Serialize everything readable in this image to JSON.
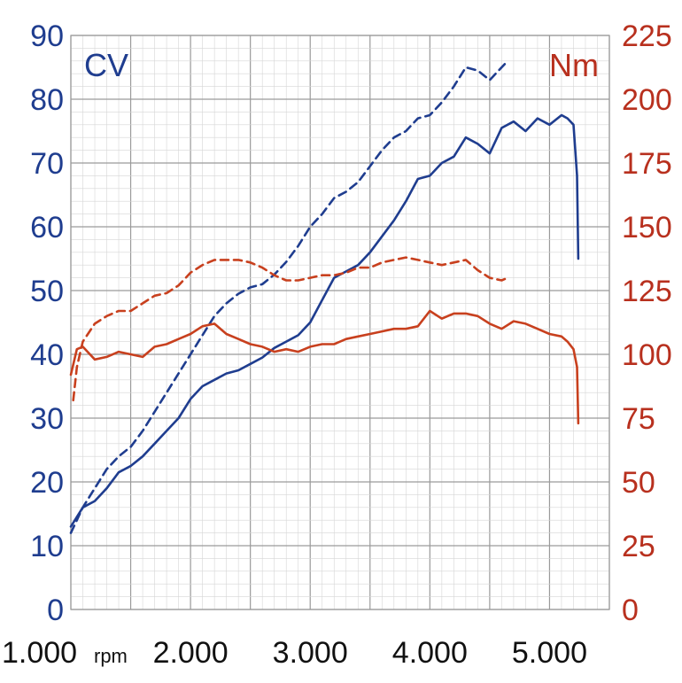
{
  "chart_data": {
    "type": "line",
    "x_ticks": [
      "1.000",
      "2.000",
      "3.000",
      "4.000",
      "5.000"
    ],
    "x_unit": "rpm",
    "xlim": [
      1000,
      5500
    ],
    "left_axis": {
      "label": "CV",
      "ticks": [
        "0",
        "10",
        "20",
        "30",
        "40",
        "50",
        "60",
        "70",
        "80",
        "90"
      ],
      "ylim": [
        0,
        90
      ],
      "color": "#1f3d8f"
    },
    "right_axis": {
      "label": "Nm",
      "ticks": [
        "0",
        "25",
        "50",
        "75",
        "100",
        "125",
        "150",
        "175",
        "200",
        "225"
      ],
      "ylim": [
        0,
        225
      ],
      "color": "#b8301e"
    },
    "grid": true,
    "series": [
      {
        "axis": "left",
        "style": "solid",
        "color": "#1f3d8f",
        "x": [
          1000,
          1100,
          1200,
          1300,
          1400,
          1500,
          1600,
          1700,
          1800,
          1900,
          2000,
          2100,
          2200,
          2300,
          2400,
          2500,
          2600,
          2700,
          2800,
          2900,
          3000,
          3100,
          3200,
          3300,
          3400,
          3500,
          3600,
          3700,
          3800,
          3900,
          4000,
          4100,
          4200,
          4300,
          4400,
          4500,
          4600,
          4700,
          4800,
          4900,
          5000,
          5100,
          5150,
          5200,
          5230,
          5240
        ],
        "y": [
          13,
          16,
          17,
          19,
          21.5,
          22.5,
          24,
          26,
          28,
          30,
          33,
          35,
          36,
          37,
          37.5,
          38.5,
          39.5,
          41,
          42,
          43,
          45,
          48.5,
          52,
          53,
          54,
          56,
          58.5,
          61,
          64,
          67.5,
          68,
          70,
          71,
          74,
          73,
          71.5,
          75.5,
          76.5,
          75,
          77,
          76,
          77.5,
          77,
          76,
          68,
          55
        ]
      },
      {
        "axis": "left",
        "style": "dashed",
        "color": "#1f3d8f",
        "x": [
          1000,
          1100,
          1200,
          1300,
          1400,
          1500,
          1600,
          1700,
          1800,
          1900,
          2000,
          2100,
          2200,
          2300,
          2400,
          2500,
          2600,
          2700,
          2800,
          2900,
          3000,
          3100,
          3200,
          3300,
          3400,
          3500,
          3600,
          3700,
          3800,
          3900,
          4000,
          4100,
          4200,
          4300,
          4400,
          4500,
          4600,
          4650
        ],
        "y": [
          12,
          16,
          19,
          22,
          24,
          25.5,
          28,
          31,
          34,
          37,
          40,
          43,
          46,
          48,
          49.5,
          50.5,
          51,
          52.5,
          54.5,
          57,
          60,
          62,
          64.5,
          65.5,
          67,
          69.5,
          72,
          74,
          75,
          77,
          77.5,
          79.5,
          82,
          85,
          84.5,
          83,
          85,
          86
        ]
      },
      {
        "axis": "right",
        "style": "solid",
        "color": "#c8401e",
        "x": [
          1000,
          1050,
          1100,
          1200,
          1300,
          1400,
          1500,
          1600,
          1700,
          1800,
          1900,
          2000,
          2100,
          2200,
          2300,
          2400,
          2500,
          2600,
          2700,
          2800,
          2900,
          3000,
          3100,
          3200,
          3300,
          3400,
          3500,
          3600,
          3700,
          3800,
          3900,
          4000,
          4100,
          4200,
          4300,
          4400,
          4500,
          4600,
          4700,
          4800,
          4900,
          5000,
          5100,
          5150,
          5200,
          5230,
          5240
        ],
        "y": [
          92,
          102,
          103,
          98,
          99,
          101,
          100,
          99,
          103,
          104,
          106,
          108,
          111,
          112,
          108,
          106,
          104,
          103,
          101,
          102,
          101,
          103,
          104,
          104,
          106,
          107,
          108,
          109,
          110,
          110,
          111,
          117,
          114,
          116,
          116,
          115,
          112,
          110,
          113,
          112,
          110,
          108,
          107,
          105,
          102,
          95,
          73
        ]
      },
      {
        "axis": "right",
        "style": "dashed",
        "color": "#c8401e",
        "x": [
          1020,
          1050,
          1100,
          1200,
          1300,
          1400,
          1500,
          1600,
          1700,
          1800,
          1900,
          2000,
          2100,
          2200,
          2300,
          2400,
          2500,
          2600,
          2700,
          2800,
          2900,
          3000,
          3100,
          3200,
          3300,
          3400,
          3500,
          3600,
          3700,
          3800,
          3900,
          4000,
          4100,
          4200,
          4300,
          4400,
          4500,
          4600,
          4650
        ],
        "y": [
          82,
          95,
          105,
          112,
          115,
          117,
          117,
          120,
          123,
          124,
          127,
          132,
          135,
          137,
          137,
          137,
          136,
          134,
          131,
          129,
          129,
          130,
          131,
          131,
          132,
          134,
          134,
          136,
          137,
          138,
          137,
          136,
          135,
          136,
          137,
          133,
          130,
          129,
          130
        ]
      }
    ]
  }
}
